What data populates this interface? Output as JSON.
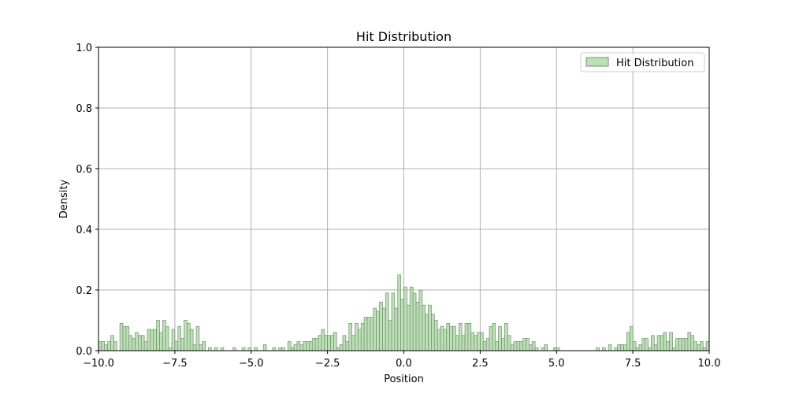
{
  "chart_data": {
    "type": "bar",
    "title": "Hit Distribution",
    "xlabel": "Position",
    "ylabel": "Density",
    "xlim": [
      -10,
      10
    ],
    "ylim": [
      0,
      1
    ],
    "x_ticks": [
      "−10.0",
      "−7.5",
      "−5.0",
      "−2.5",
      "0.0",
      "2.5",
      "5.0",
      "7.5",
      "10.0"
    ],
    "y_ticks": [
      "0.0",
      "0.2",
      "0.4",
      "0.6",
      "0.8",
      "1.0"
    ],
    "grid": true,
    "legend_position": "top-right",
    "series": [
      {
        "name": "Hit Distribution",
        "color": "#a8d5a2",
        "edge_color": "#6f8f6a",
        "bin_width": 0.1,
        "bins": [
          [
            -10.0,
            0.03
          ],
          [
            -9.9,
            0.03
          ],
          [
            -9.8,
            0.02
          ],
          [
            -9.7,
            0.03
          ],
          [
            -9.6,
            0.05
          ],
          [
            -9.5,
            0.03
          ],
          [
            -9.3,
            0.09
          ],
          [
            -9.2,
            0.08
          ],
          [
            -9.1,
            0.08
          ],
          [
            -9.0,
            0.05
          ],
          [
            -8.9,
            0.04
          ],
          [
            -8.8,
            0.06
          ],
          [
            -8.7,
            0.05
          ],
          [
            -8.6,
            0.05
          ],
          [
            -8.5,
            0.03
          ],
          [
            -8.4,
            0.07
          ],
          [
            -8.3,
            0.07
          ],
          [
            -8.2,
            0.07
          ],
          [
            -8.1,
            0.1
          ],
          [
            -8.0,
            0.06
          ],
          [
            -7.9,
            0.1
          ],
          [
            -7.8,
            0.08
          ],
          [
            -7.7,
            0.01
          ],
          [
            -7.6,
            0.07
          ],
          [
            -7.5,
            0.03
          ],
          [
            -7.4,
            0.08
          ],
          [
            -7.3,
            0.04
          ],
          [
            -7.2,
            0.1
          ],
          [
            -7.1,
            0.09
          ],
          [
            -7.0,
            0.07
          ],
          [
            -6.9,
            0.02
          ],
          [
            -6.8,
            0.08
          ],
          [
            -6.7,
            0.02
          ],
          [
            -6.6,
            0.03
          ],
          [
            -6.4,
            0.01
          ],
          [
            -6.2,
            0.01
          ],
          [
            -6.0,
            0.01
          ],
          [
            -5.6,
            0.01
          ],
          [
            -5.3,
            0.01
          ],
          [
            -5.1,
            0.01
          ],
          [
            -4.9,
            0.01
          ],
          [
            -4.6,
            0.02
          ],
          [
            -4.3,
            0.01
          ],
          [
            -4.1,
            0.01
          ],
          [
            -4.0,
            0.01
          ],
          [
            -3.8,
            0.03
          ],
          [
            -3.7,
            0.01
          ],
          [
            -3.6,
            0.02
          ],
          [
            -3.5,
            0.03
          ],
          [
            -3.4,
            0.02
          ],
          [
            -3.3,
            0.03
          ],
          [
            -3.2,
            0.03
          ],
          [
            -3.1,
            0.03
          ],
          [
            -3.0,
            0.04
          ],
          [
            -2.9,
            0.04
          ],
          [
            -2.8,
            0.05
          ],
          [
            -2.7,
            0.07
          ],
          [
            -2.6,
            0.05
          ],
          [
            -2.5,
            0.05
          ],
          [
            -2.4,
            0.05
          ],
          [
            -2.3,
            0.06
          ],
          [
            -2.2,
            0.01
          ],
          [
            -2.1,
            0.02
          ],
          [
            -2.0,
            0.05
          ],
          [
            -1.9,
            0.03
          ],
          [
            -1.8,
            0.09
          ],
          [
            -1.7,
            0.05
          ],
          [
            -1.6,
            0.09
          ],
          [
            -1.5,
            0.07
          ],
          [
            -1.4,
            0.09
          ],
          [
            -1.3,
            0.11
          ],
          [
            -1.2,
            0.11
          ],
          [
            -1.1,
            0.11
          ],
          [
            -1.0,
            0.14
          ],
          [
            -0.9,
            0.13
          ],
          [
            -0.8,
            0.16
          ],
          [
            -0.7,
            0.14
          ],
          [
            -0.6,
            0.19
          ],
          [
            -0.5,
            0.1
          ],
          [
            -0.4,
            0.19
          ],
          [
            -0.3,
            0.14
          ],
          [
            -0.2,
            0.25
          ],
          [
            -0.1,
            0.17
          ],
          [
            0.0,
            0.21
          ],
          [
            0.1,
            0.15
          ],
          [
            0.2,
            0.21
          ],
          [
            0.3,
            0.19
          ],
          [
            0.4,
            0.16
          ],
          [
            0.5,
            0.2
          ],
          [
            0.6,
            0.15
          ],
          [
            0.7,
            0.12
          ],
          [
            0.8,
            0.15
          ],
          [
            0.9,
            0.12
          ],
          [
            1.0,
            0.1
          ],
          [
            1.1,
            0.07
          ],
          [
            1.2,
            0.08
          ],
          [
            1.3,
            0.07
          ],
          [
            1.4,
            0.09
          ],
          [
            1.5,
            0.08
          ],
          [
            1.6,
            0.08
          ],
          [
            1.7,
            0.05
          ],
          [
            1.8,
            0.09
          ],
          [
            1.9,
            0.05
          ],
          [
            2.0,
            0.09
          ],
          [
            2.1,
            0.09
          ],
          [
            2.2,
            0.06
          ],
          [
            2.3,
            0.05
          ],
          [
            2.4,
            0.06
          ],
          [
            2.5,
            0.06
          ],
          [
            2.6,
            0.03
          ],
          [
            2.7,
            0.04
          ],
          [
            2.8,
            0.08
          ],
          [
            2.9,
            0.09
          ],
          [
            3.0,
            0.03
          ],
          [
            3.1,
            0.08
          ],
          [
            3.2,
            0.04
          ],
          [
            3.3,
            0.09
          ],
          [
            3.4,
            0.05
          ],
          [
            3.5,
            0.02
          ],
          [
            3.6,
            0.03
          ],
          [
            3.7,
            0.03
          ],
          [
            3.8,
            0.03
          ],
          [
            3.9,
            0.04
          ],
          [
            4.0,
            0.04
          ],
          [
            4.1,
            0.02
          ],
          [
            4.2,
            0.03
          ],
          [
            4.3,
            0.01
          ],
          [
            4.5,
            0.01
          ],
          [
            4.6,
            0.02
          ],
          [
            4.9,
            0.01
          ],
          [
            5.0,
            0.01
          ],
          [
            6.3,
            0.01
          ],
          [
            6.5,
            0.01
          ],
          [
            6.7,
            0.02
          ],
          [
            6.9,
            0.01
          ],
          [
            7.0,
            0.02
          ],
          [
            7.1,
            0.02
          ],
          [
            7.2,
            0.02
          ],
          [
            7.3,
            0.06
          ],
          [
            7.4,
            0.08
          ],
          [
            7.5,
            0.03
          ],
          [
            7.6,
            0.01
          ],
          [
            7.7,
            0.02
          ],
          [
            7.8,
            0.04
          ],
          [
            7.9,
            0.04
          ],
          [
            8.0,
            0.01
          ],
          [
            8.1,
            0.05
          ],
          [
            8.2,
            0.02
          ],
          [
            8.3,
            0.05
          ],
          [
            8.4,
            0.05
          ],
          [
            8.5,
            0.06
          ],
          [
            8.6,
            0.03
          ],
          [
            8.7,
            0.06
          ],
          [
            8.8,
            0.01
          ],
          [
            8.9,
            0.04
          ],
          [
            9.0,
            0.04
          ],
          [
            9.1,
            0.04
          ],
          [
            9.2,
            0.04
          ],
          [
            9.3,
            0.06
          ],
          [
            9.4,
            0.05
          ],
          [
            9.5,
            0.03
          ],
          [
            9.6,
            0.02
          ],
          [
            9.7,
            0.03
          ],
          [
            9.8,
            0.01
          ],
          [
            9.9,
            0.03
          ]
        ]
      }
    ]
  }
}
